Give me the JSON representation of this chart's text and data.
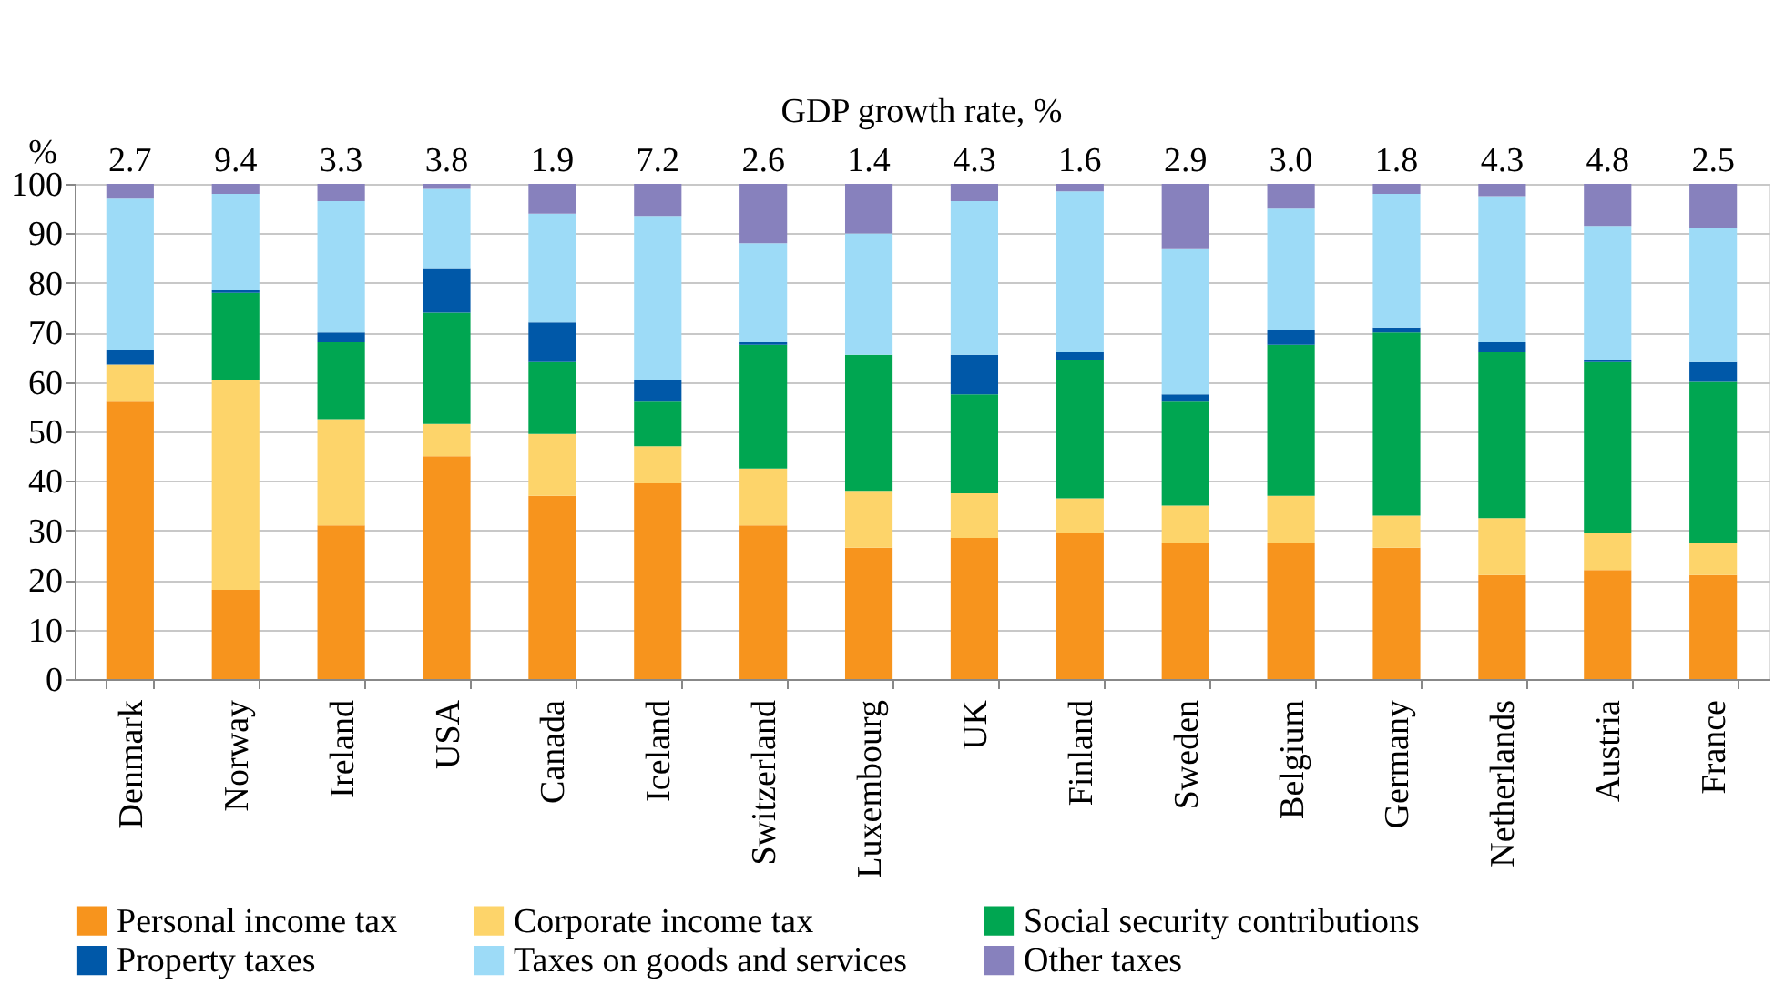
{
  "chart_data": {
    "type": "bar",
    "stacked": true,
    "ylabel": "%",
    "x2label": "GDP growth rate, %",
    "categories": [
      "Denmark",
      "Norway",
      "Ireland",
      "USA",
      "Canada",
      "Iceland",
      "Switzerland",
      "Luxembourg",
      "UK",
      "Finland",
      "Sweden",
      "Belgium",
      "Germany",
      "Netherlands",
      "Austria",
      "France"
    ],
    "series": [
      {
        "name": "Personal income tax",
        "color": "#f7941d",
        "values": [
          56,
          18,
          31,
          45,
          37,
          39.5,
          31,
          26.5,
          28.5,
          29.5,
          27.5,
          27.5,
          26.5,
          21,
          22,
          21
        ]
      },
      {
        "name": "Corporate income tax",
        "color": "#fdd46a",
        "values": [
          7.5,
          42.5,
          21.5,
          6.5,
          12.5,
          7.5,
          11.5,
          11.5,
          9,
          7,
          7.5,
          9.5,
          6.5,
          11.5,
          7.5,
          6.5
        ]
      },
      {
        "name": "Social security contributions",
        "color": "#00a651",
        "values": [
          0,
          17.5,
          15.5,
          22.5,
          14.5,
          9,
          25,
          27.5,
          20,
          28,
          21,
          30.5,
          37,
          33.5,
          34.5,
          32.5
        ]
      },
      {
        "name": "Property taxes",
        "color": "#0058a8",
        "values": [
          3,
          0.5,
          2,
          9,
          8,
          4.5,
          0.5,
          0,
          8,
          1.5,
          1.5,
          3,
          1,
          2,
          0.5,
          4
        ]
      },
      {
        "name": "Taxes on goods and services",
        "color": "#9ddbf7",
        "values": [
          30.5,
          19.5,
          26.5,
          16,
          22,
          33,
          20,
          24.5,
          31,
          32.5,
          29.5,
          24.5,
          27,
          29.5,
          27,
          27
        ]
      },
      {
        "name": "Other taxes",
        "color": "#8781bd",
        "values": [
          3,
          2,
          3.5,
          1,
          6,
          6.5,
          12,
          10,
          3.5,
          1.5,
          13,
          5,
          2,
          2.5,
          8.5,
          9
        ]
      }
    ],
    "annotations": [
      "2.7",
      "9.4",
      "3.3",
      "3.8",
      "1.9",
      "7.2",
      "2.6",
      "1.4",
      "4.3",
      "1.6",
      "2.9",
      "3.0",
      "1.8",
      "4.3",
      "4.8",
      "2.5"
    ],
    "ylim": [
      0,
      100
    ],
    "yticks": [
      0,
      10,
      20,
      30,
      40,
      50,
      60,
      70,
      80,
      90,
      100
    ],
    "grid": "y",
    "legend": "bottom"
  }
}
